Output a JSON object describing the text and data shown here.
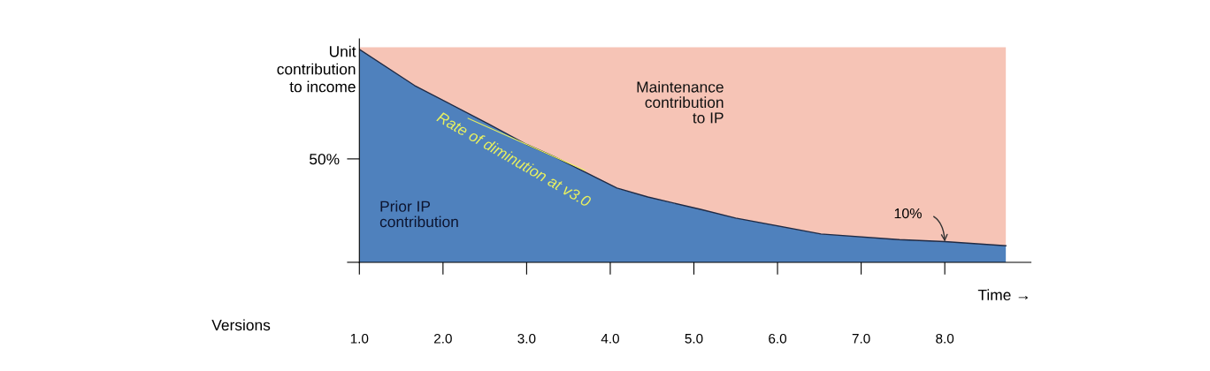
{
  "chart_data": {
    "type": "area",
    "stacked": true,
    "ylabel": "Unit\ncontribution\nto income",
    "xlabel": "Time →",
    "x": [
      1,
      1.66,
      2.54,
      3,
      3.32,
      4.08,
      4.45,
      5.08,
      5.5,
      6.52,
      7.45,
      8,
      8.73
    ],
    "series": [
      {
        "name": "Prior IP\ncontribution",
        "color": "#4f81bd",
        "values": [
          103,
          85.5,
          67,
          57,
          51.3,
          35.9,
          31.6,
          25.6,
          21.4,
          13.7,
          11,
          10,
          8
        ]
      },
      {
        "name": "Maintenance\ncontribution\nto IP",
        "color": "#f6c4b6",
        "values": [
          1,
          18.5,
          37,
          47,
          52.7,
          68.1,
          72.4,
          78.4,
          82.6,
          90.3,
          93,
          94,
          96
        ]
      }
    ],
    "xlim": [
      1,
      9.03
    ],
    "ylim": [
      0,
      108
    ],
    "xticks": [
      {
        "value": 1,
        "label": "1.0"
      },
      {
        "value": 2,
        "label": "2.0"
      },
      {
        "value": 3,
        "label": "3.0"
      },
      {
        "value": 4,
        "label": "4.0"
      },
      {
        "value": 5,
        "label": "5.0"
      },
      {
        "value": 6,
        "label": "6.0"
      },
      {
        "value": 7,
        "label": "7.0"
      },
      {
        "value": 8,
        "label": "8.0"
      }
    ],
    "yticks": [
      {
        "value": 0,
        "label": null
      },
      {
        "value": 50,
        "label": "50%"
      }
    ],
    "annotations": [
      {
        "text": "Rate of diminution at v3.0",
        "x": 3,
        "y": 57
      },
      {
        "text": "10%",
        "x": 8,
        "y": 10
      },
      "Versions"
    ],
    "grid": false,
    "legend": false
  }
}
